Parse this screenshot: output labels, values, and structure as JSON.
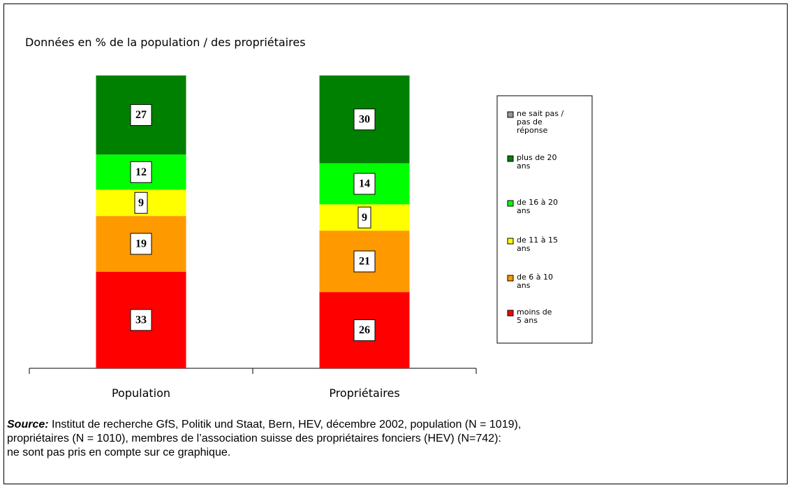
{
  "chart_data": {
    "type": "stacked-bar",
    "title": "Données en % de la population / des propriétaires",
    "categories": [
      "Population",
      "Propriétaires"
    ],
    "ylim": [
      0,
      100
    ],
    "series": [
      {
        "name": "moins de 5 ans",
        "color": "#ff0000",
        "values": [
          33,
          26
        ]
      },
      {
        "name": "de 6 à 10 ans",
        "color": "#ff9900",
        "values": [
          19,
          21
        ]
      },
      {
        "name": "de 11 à 15 ans",
        "color": "#ffff00",
        "values": [
          9,
          9
        ]
      },
      {
        "name": "de 16 à 20 ans",
        "color": "#00ff00",
        "values": [
          12,
          14
        ]
      },
      {
        "name": "plus de 20 ans",
        "color": "#008000",
        "values": [
          27,
          30
        ]
      },
      {
        "name": "ne sait pas / pas de réponse",
        "color": "#969696",
        "values": [
          0,
          0
        ]
      }
    ]
  },
  "source": {
    "label": "Source:",
    "lines": [
      "Institut de recherche GfS, Politik und Staat, Bern, HEV, décembre 2002, population (N = 1019),",
      "propriétaires (N = 1010), membres de l’association suisse des propriétaires fonciers (HEV) (N=742):",
      "ne sont pas pris en compte sur ce graphique."
    ]
  }
}
